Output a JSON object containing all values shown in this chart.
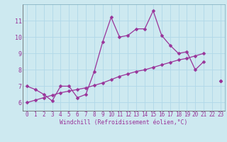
{
  "bg_color": "#cde9f0",
  "grid_color": "#b0d8e8",
  "line_color": "#993399",
  "x_values": [
    0,
    1,
    2,
    3,
    4,
    5,
    6,
    7,
    8,
    9,
    10,
    11,
    12,
    13,
    14,
    15,
    16,
    17,
    18,
    19,
    20,
    21,
    22,
    23
  ],
  "line1": [
    7.0,
    6.8,
    6.5,
    6.1,
    7.0,
    7.0,
    6.3,
    6.5,
    7.9,
    9.7,
    11.2,
    10.0,
    10.1,
    10.5,
    10.5,
    11.6,
    10.1,
    9.5,
    9.0,
    9.1,
    8.0,
    8.5,
    null,
    7.3
  ],
  "line2": [
    6.0,
    6.15,
    6.3,
    6.45,
    6.6,
    6.7,
    6.8,
    6.9,
    7.05,
    7.2,
    7.4,
    7.6,
    7.75,
    7.9,
    8.0,
    8.15,
    8.3,
    8.45,
    8.6,
    8.7,
    8.85,
    9.0,
    null,
    7.3
  ],
  "xlabel": "Windchill (Refroidissement éolien,°C)",
  "ylim": [
    5.5,
    12.0
  ],
  "yticks": [
    6,
    7,
    8,
    9,
    10,
    11
  ],
  "xlim": [
    -0.5,
    23.5
  ],
  "tick_fontsize": 5.5,
  "xlabel_fontsize": 5.8
}
